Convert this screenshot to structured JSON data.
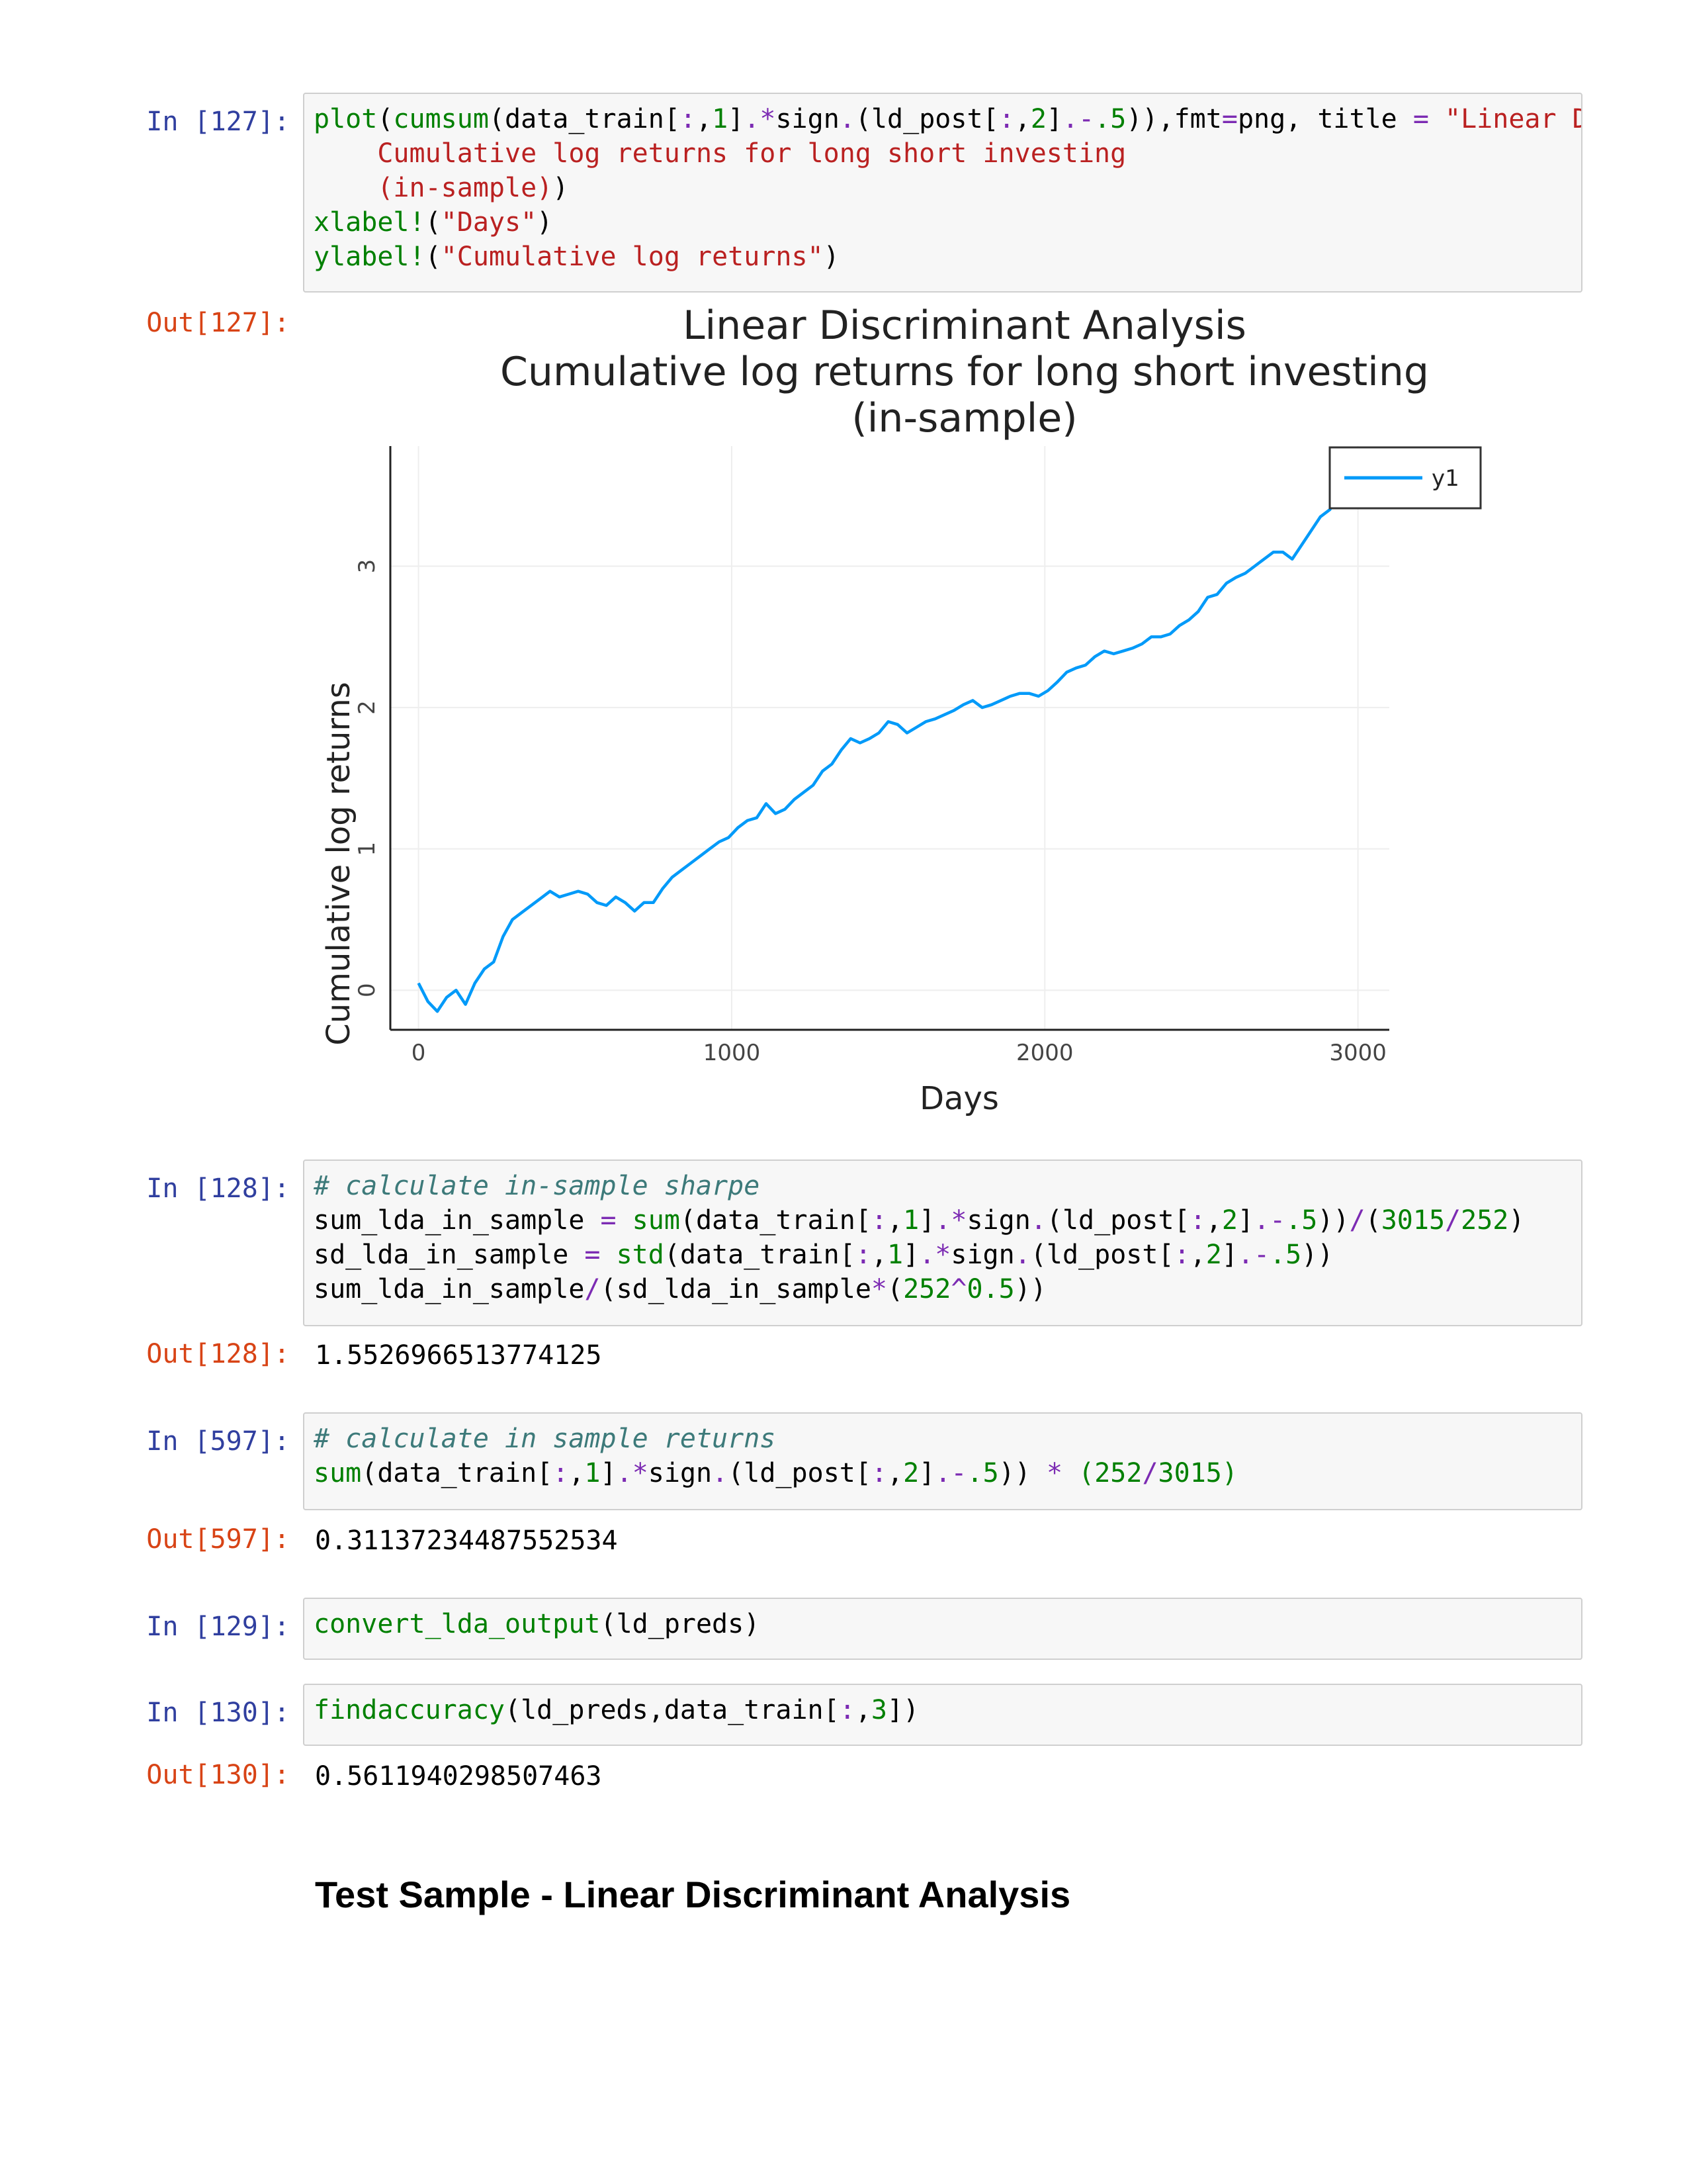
{
  "cells": [
    {
      "prompt_in": "In [127]:",
      "code_lines": [
        [
          [
            "fn",
            "plot"
          ],
          [
            "p",
            "("
          ],
          [
            "fn",
            "cumsum"
          ],
          [
            "p",
            "(data_train["
          ],
          [
            "op",
            ":"
          ],
          [
            "p",
            ","
          ],
          [
            "num",
            "1"
          ],
          [
            "p",
            "]"
          ],
          [
            "op",
            ".*"
          ],
          [
            "p",
            "sign"
          ],
          [
            "op",
            "."
          ],
          [
            "p",
            "(ld_post["
          ],
          [
            "op",
            ":"
          ],
          [
            "p",
            ","
          ],
          [
            "num",
            "2"
          ],
          [
            "p",
            "]"
          ],
          [
            "op",
            ".-"
          ],
          [
            "num",
            ".5"
          ],
          [
            "p",
            "))"
          ],
          [
            "p",
            ",fmt"
          ],
          [
            "op",
            "="
          ],
          [
            "p",
            "png, title "
          ],
          [
            "op",
            "="
          ],
          [
            "str",
            " \"Linear Di"
          ]
        ],
        [
          [
            "str",
            "    Cumulative log returns for long short investing"
          ]
        ],
        [
          [
            "str",
            "    (in-sample)"
          ],
          [
            "p",
            ")"
          ]
        ],
        [
          [
            "fn",
            "xlabel!"
          ],
          [
            "p",
            "("
          ],
          [
            "str",
            "\"Days\""
          ],
          [
            "p",
            ")"
          ]
        ],
        [
          [
            "fn",
            "ylabel!"
          ],
          [
            "p",
            "("
          ],
          [
            "str",
            "\"Cumulative log returns\""
          ],
          [
            "p",
            ")"
          ]
        ]
      ],
      "prompt_out": "Out[127]:"
    },
    {
      "prompt_in": "In [128]:",
      "code_lines": [
        [
          [
            "com",
            "# calculate in-sample sharpe"
          ]
        ],
        [
          [
            "p",
            "sum_lda_in_sample "
          ],
          [
            "op",
            "="
          ],
          [
            "p",
            " "
          ],
          [
            "fn",
            "sum"
          ],
          [
            "p",
            "(data_train["
          ],
          [
            "op",
            ":"
          ],
          [
            "p",
            ","
          ],
          [
            "num",
            "1"
          ],
          [
            "p",
            "]"
          ],
          [
            "op",
            ".*"
          ],
          [
            "p",
            "sign"
          ],
          [
            "op",
            "."
          ],
          [
            "p",
            "(ld_post["
          ],
          [
            "op",
            ":"
          ],
          [
            "p",
            ","
          ],
          [
            "num",
            "2"
          ],
          [
            "p",
            "]"
          ],
          [
            "op",
            ".-"
          ],
          [
            "num",
            ".5"
          ],
          [
            "p",
            "))"
          ],
          [
            "op",
            "/"
          ],
          [
            "p",
            "("
          ],
          [
            "num",
            "3015"
          ],
          [
            "op",
            "/"
          ],
          [
            "num",
            "252"
          ],
          [
            "p",
            ")"
          ]
        ],
        [
          [
            "p",
            "sd_lda_in_sample "
          ],
          [
            "op",
            "="
          ],
          [
            "p",
            " "
          ],
          [
            "fn",
            "std"
          ],
          [
            "p",
            "(data_train["
          ],
          [
            "op",
            ":"
          ],
          [
            "p",
            ","
          ],
          [
            "num",
            "1"
          ],
          [
            "p",
            "]"
          ],
          [
            "op",
            ".*"
          ],
          [
            "p",
            "sign"
          ],
          [
            "op",
            "."
          ],
          [
            "p",
            "(ld_post["
          ],
          [
            "op",
            ":"
          ],
          [
            "p",
            ","
          ],
          [
            "num",
            "2"
          ],
          [
            "p",
            "]"
          ],
          [
            "op",
            ".-"
          ],
          [
            "num",
            ".5"
          ],
          [
            "p",
            "))"
          ]
        ],
        [
          [
            "p",
            "sum_lda_in_sample"
          ],
          [
            "op",
            "/"
          ],
          [
            "p",
            "(sd_lda_in_sample"
          ],
          [
            "op",
            "*"
          ],
          [
            "p",
            "("
          ],
          [
            "num",
            "252"
          ],
          [
            "op",
            "^"
          ],
          [
            "num",
            "0.5"
          ],
          [
            "p",
            "))"
          ]
        ]
      ],
      "prompt_out": "Out[128]:",
      "output": "1.5526966513774125"
    },
    {
      "prompt_in": "In [597]:",
      "code_lines": [
        [
          [
            "com",
            "# calculate in sample returns"
          ]
        ],
        [
          [
            "fn",
            "sum"
          ],
          [
            "p",
            "(data_train["
          ],
          [
            "op",
            ":"
          ],
          [
            "p",
            ","
          ],
          [
            "num",
            "1"
          ],
          [
            "p",
            "]"
          ],
          [
            "op",
            ".*"
          ],
          [
            "p",
            "sign"
          ],
          [
            "op",
            "."
          ],
          [
            "p",
            "(ld_post["
          ],
          [
            "op",
            ":"
          ],
          [
            "p",
            ","
          ],
          [
            "num",
            "2"
          ],
          [
            "p",
            "]"
          ],
          [
            "op",
            ".-"
          ],
          [
            "num",
            ".5"
          ],
          [
            "p",
            "))"
          ],
          [
            "p",
            " "
          ],
          [
            "op",
            "*"
          ],
          [
            "p",
            " "
          ],
          [
            "num",
            "(252"
          ],
          [
            "op",
            "/"
          ],
          [
            "num",
            "3015)"
          ]
        ]
      ],
      "prompt_out": "Out[597]:",
      "output": "0.31137234487552534"
    },
    {
      "prompt_in": "In [129]:",
      "code_lines": [
        [
          [
            "fn",
            "convert_lda_output"
          ],
          [
            "p",
            "(ld_preds)"
          ]
        ]
      ]
    },
    {
      "prompt_in": "In [130]:",
      "code_lines": [
        [
          [
            "fn",
            "findaccuracy"
          ],
          [
            "p",
            "(ld_preds,data_train["
          ],
          [
            "op",
            ":"
          ],
          [
            "p",
            ","
          ],
          [
            "num",
            "3"
          ],
          [
            "p",
            "])"
          ]
        ]
      ],
      "prompt_out": "Out[130]:",
      "output": "0.5611940298507463"
    }
  ],
  "heading": "Test Sample - Linear Discriminant Analysis",
  "chart_data": {
    "type": "line",
    "title_lines": [
      "Linear Discriminant Analysis",
      "Cumulative log returns for long short investing",
      "(in-sample)"
    ],
    "xlabel": "Days",
    "ylabel": "Cumulative log returns",
    "xlim": [
      -90,
      3100
    ],
    "ylim": [
      -0.28,
      3.85
    ],
    "xticks": [
      0,
      1000,
      2000,
      3000
    ],
    "yticks": [
      0,
      1,
      2,
      3
    ],
    "grid": true,
    "legend": "top-right",
    "line_color": "#009af9",
    "series": [
      {
        "name": "y1",
        "x": [
          0,
          30,
          60,
          90,
          120,
          150,
          180,
          210,
          240,
          270,
          300,
          330,
          360,
          390,
          420,
          450,
          480,
          510,
          540,
          570,
          600,
          630,
          660,
          690,
          720,
          750,
          780,
          810,
          840,
          870,
          900,
          930,
          960,
          990,
          1020,
          1050,
          1080,
          1110,
          1140,
          1170,
          1200,
          1230,
          1260,
          1290,
          1320,
          1350,
          1380,
          1410,
          1440,
          1470,
          1500,
          1530,
          1560,
          1590,
          1620,
          1650,
          1680,
          1710,
          1740,
          1770,
          1800,
          1830,
          1860,
          1890,
          1920,
          1950,
          1980,
          2010,
          2040,
          2070,
          2100,
          2130,
          2160,
          2190,
          2220,
          2250,
          2280,
          2310,
          2340,
          2370,
          2400,
          2430,
          2460,
          2490,
          2520,
          2550,
          2580,
          2610,
          2640,
          2670,
          2700,
          2730,
          2760,
          2790,
          2820,
          2850,
          2880,
          2910,
          2940,
          2970,
          3000,
          3015
        ],
        "y": [
          0.05,
          -0.08,
          -0.15,
          -0.05,
          0.0,
          -0.1,
          0.05,
          0.15,
          0.2,
          0.38,
          0.5,
          0.55,
          0.6,
          0.65,
          0.7,
          0.66,
          0.68,
          0.7,
          0.68,
          0.62,
          0.6,
          0.66,
          0.62,
          0.56,
          0.62,
          0.62,
          0.72,
          0.8,
          0.85,
          0.9,
          0.95,
          1.0,
          1.05,
          1.08,
          1.15,
          1.2,
          1.22,
          1.32,
          1.25,
          1.28,
          1.35,
          1.4,
          1.45,
          1.55,
          1.6,
          1.7,
          1.78,
          1.75,
          1.78,
          1.82,
          1.9,
          1.88,
          1.82,
          1.86,
          1.9,
          1.92,
          1.95,
          1.98,
          2.02,
          2.05,
          2.0,
          2.02,
          2.05,
          2.08,
          2.1,
          2.1,
          2.08,
          2.12,
          2.18,
          2.25,
          2.28,
          2.3,
          2.36,
          2.4,
          2.38,
          2.4,
          2.42,
          2.45,
          2.5,
          2.5,
          2.52,
          2.58,
          2.62,
          2.68,
          2.78,
          2.8,
          2.88,
          2.92,
          2.95,
          3.0,
          3.05,
          3.1,
          3.1,
          3.05,
          3.15,
          3.25,
          3.35,
          3.4,
          3.5,
          3.58,
          3.62,
          3.75
        ]
      }
    ]
  }
}
